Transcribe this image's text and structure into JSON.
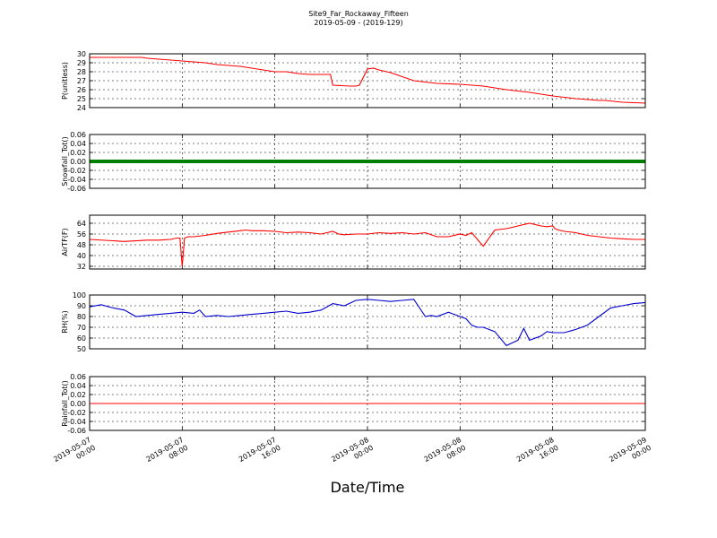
{
  "title": "Site9_Far_Rockaway_Fifteen",
  "subtitle": "2019-05-09 - (2019-129)",
  "xlabel": "Date/Time",
  "chart_data": [
    {
      "type": "line",
      "ylabel": "P(unitless)",
      "ylim": [
        24,
        30
      ],
      "yticks": [
        "24",
        "25",
        "26",
        "27",
        "28",
        "29",
        "30"
      ],
      "color": "#ff0000",
      "xlim": [
        "2019-05-07 00:00",
        "2019-05-09 00:00"
      ],
      "x_hours": [
        0,
        4.5,
        5,
        7,
        8,
        9,
        10,
        11,
        12,
        13,
        14,
        15,
        16,
        17,
        17.5,
        18,
        19,
        20,
        20.8,
        21,
        22.5,
        23,
        23.3,
        24,
        24.5,
        25,
        26,
        28,
        30,
        32,
        33,
        34,
        36,
        38,
        40,
        42,
        44,
        44.5,
        46,
        48
      ],
      "y": [
        29.6,
        29.6,
        29.5,
        29.3,
        29.2,
        29.1,
        29.0,
        28.8,
        28.7,
        28.6,
        28.4,
        28.2,
        28.0,
        28.0,
        27.9,
        27.8,
        27.7,
        27.7,
        27.7,
        26.5,
        26.4,
        26.4,
        26.5,
        28.3,
        28.4,
        28.2,
        27.9,
        27.0,
        26.7,
        26.6,
        26.5,
        26.4,
        26.0,
        25.7,
        25.3,
        25.0,
        24.8,
        24.8,
        24.6,
        24.5
      ],
      "grid": true
    },
    {
      "type": "scatter",
      "ylabel": "Snowfall_Tot()",
      "ylim": [
        -0.06,
        0.06
      ],
      "yticks": [
        "-0.06",
        "-0.04",
        "-0.02",
        "0.00",
        "0.02",
        "0.04",
        "0.06"
      ],
      "color": "#008000",
      "constant": 0,
      "grid": true
    },
    {
      "type": "line",
      "ylabel": "AirTF(F)",
      "ylim": [
        30,
        70
      ],
      "yticks": [
        "32",
        "40",
        "48",
        "56",
        "64"
      ],
      "color": "#ff0000",
      "x_hours": [
        0,
        2,
        3,
        5,
        6,
        7,
        7.5,
        7.8,
        8,
        8.2,
        8.5,
        9,
        10,
        11,
        12,
        13,
        13.5,
        14,
        15,
        16,
        17,
        18,
        19,
        20,
        21,
        21.5,
        22,
        23,
        24,
        25,
        26,
        27,
        28,
        29,
        30,
        31,
        32,
        32.5,
        33,
        34,
        35,
        36,
        37,
        38,
        39,
        39.5,
        40,
        40.2,
        40.5,
        41,
        42,
        43,
        44,
        45,
        46,
        47,
        48
      ],
      "y": [
        52,
        51,
        50.5,
        51.5,
        51.5,
        52,
        53,
        53,
        32,
        53,
        54,
        54,
        55,
        56.5,
        57.5,
        58.5,
        59,
        58.5,
        58.5,
        58,
        57,
        57.5,
        57,
        56,
        58,
        56,
        55.5,
        56,
        56,
        57,
        56.5,
        57,
        56,
        57,
        54,
        54,
        56,
        55,
        57,
        47,
        59,
        60,
        62,
        64,
        62,
        61.5,
        62,
        60,
        59,
        58,
        57,
        55,
        54,
        53,
        52.5,
        52,
        52
      ],
      "grid": true
    },
    {
      "type": "line",
      "ylabel": "RH(%)",
      "ylim": [
        50,
        100
      ],
      "yticks": [
        "50",
        "60",
        "70",
        "80",
        "90",
        "100"
      ],
      "color": "#0000cc",
      "x_hours": [
        0,
        1,
        2,
        3,
        4,
        5,
        6,
        7,
        8,
        9,
        9.5,
        10,
        11,
        12,
        13,
        14,
        15,
        16,
        17,
        18,
        19,
        20,
        21,
        22,
        23,
        24,
        25,
        26,
        27,
        28,
        29,
        29.5,
        30,
        31,
        32,
        32.5,
        33,
        33.5,
        34,
        35,
        36,
        37,
        37.5,
        38,
        39,
        39.5,
        40,
        41,
        42,
        43,
        44,
        45,
        46,
        47,
        48
      ],
      "y": [
        89,
        91,
        88,
        86,
        80,
        81,
        82,
        83,
        84,
        83,
        86,
        80,
        81,
        80,
        81,
        82,
        83,
        84,
        85,
        83,
        84,
        86,
        92,
        90,
        95,
        96,
        95,
        94,
        95,
        96,
        80,
        81,
        80,
        84,
        80,
        78,
        72,
        70,
        70,
        66,
        53,
        58,
        69,
        58,
        62,
        66,
        65,
        65,
        68,
        72,
        80,
        88,
        90,
        92,
        93
      ],
      "grid": true
    },
    {
      "type": "line",
      "ylabel": "Rainfall_Tot()",
      "ylim": [
        -0.06,
        0.06
      ],
      "yticks": [
        "-0.06",
        "-0.04",
        "-0.02",
        "0.00",
        "0.02",
        "0.04",
        "0.06"
      ],
      "color": "#ff0000",
      "constant": 0,
      "grid": true
    }
  ],
  "xticks": [
    {
      "line1": "2019-05-07",
      "line2": "00:00",
      "hour": 0
    },
    {
      "line1": "2019-05-07",
      "line2": "08:00",
      "hour": 8
    },
    {
      "line1": "2019-05-07",
      "line2": "16:00",
      "hour": 16
    },
    {
      "line1": "2019-05-08",
      "line2": "00:00",
      "hour": 24
    },
    {
      "line1": "2019-05-08",
      "line2": "08:00",
      "hour": 32
    },
    {
      "line1": "2019-05-08",
      "line2": "16:00",
      "hour": 40
    },
    {
      "line1": "2019-05-09",
      "line2": "00:00",
      "hour": 48
    }
  ]
}
